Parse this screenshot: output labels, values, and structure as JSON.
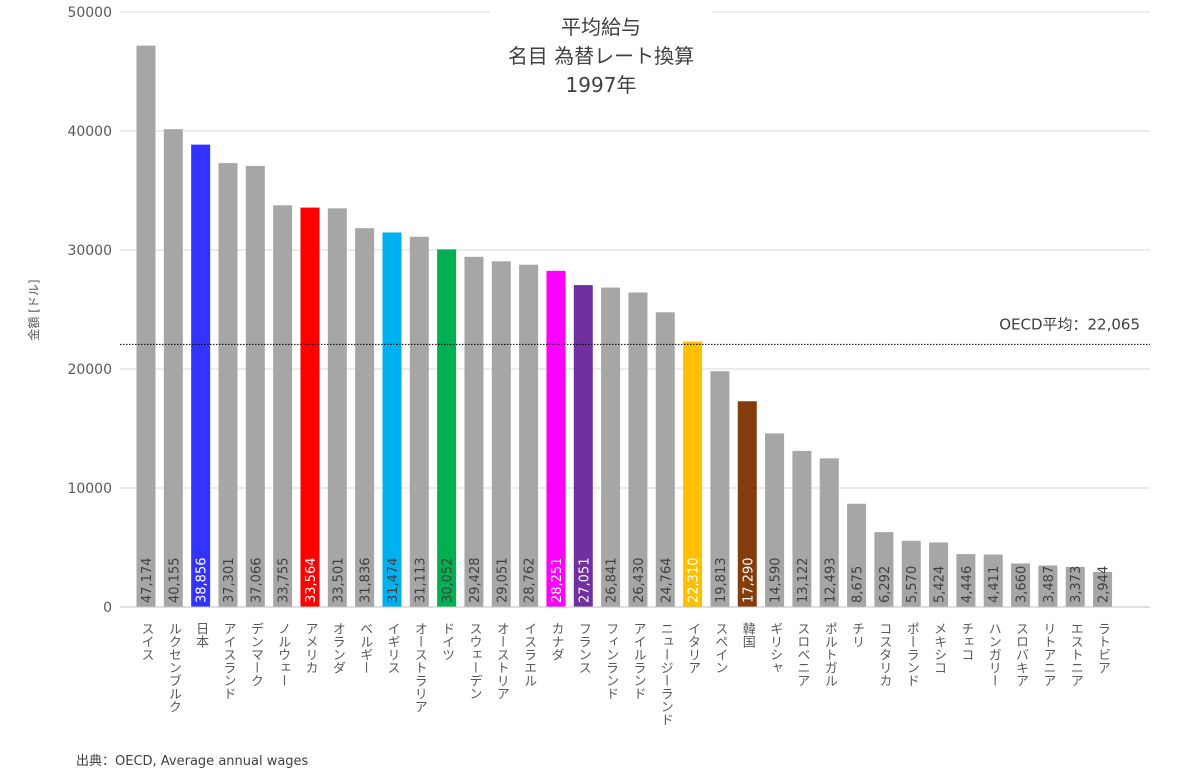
{
  "chart_data": {
    "type": "bar",
    "title": [
      "平均給与",
      "名目 為替レート換算",
      "1997年"
    ],
    "ylabel": "金額 [ドル]",
    "xlabel": "",
    "ylim": [
      0,
      50000
    ],
    "yticks": [
      0,
      10000,
      20000,
      30000,
      40000,
      50000
    ],
    "grid": true,
    "categories": [
      "スイス",
      "ルクセンブルク",
      "日本",
      "アイスランド",
      "デンマーク",
      "ノルウェー",
      "アメリカ",
      "オランダ",
      "ベルギー",
      "イギリス",
      "オーストラリア",
      "ドイツ",
      "スウェーデン",
      "オーストリア",
      "イスラエル",
      "カナダ",
      "フランス",
      "フィンランド",
      "アイルランド",
      "ニュージーランド",
      "イタリア",
      "スペイン",
      "韓国",
      "ギリシャ",
      "スロベニア",
      "ポルトガル",
      "チリ",
      "コスタリカ",
      "ポーランド",
      "メキシコ",
      "チェコ",
      "ハンガリー",
      "スロバキア",
      "リトアニア",
      "エストニア",
      "ラトビア"
    ],
    "values": [
      47174,
      40155,
      38856,
      37301,
      37066,
      33755,
      33564,
      33501,
      31836,
      31474,
      31113,
      30052,
      29428,
      29051,
      28762,
      28251,
      27051,
      26841,
      26430,
      24764,
      22310,
      19813,
      17290,
      14590,
      13122,
      12493,
      8675,
      6292,
      5570,
      5424,
      4446,
      4411,
      3660,
      3487,
      3373,
      2944
    ],
    "value_labels": [
      "47,174",
      "40,155",
      "38,856",
      "37,301",
      "37,066",
      "33,755",
      "33,564",
      "33,501",
      "31,836",
      "31,474",
      "31,113",
      "30,052",
      "29,428",
      "29,051",
      "28,762",
      "28,251",
      "27,051",
      "26,841",
      "26,430",
      "24,764",
      "22,310",
      "19,813",
      "17,290",
      "14,590",
      "13,122",
      "12,493",
      "8,675",
      "6,292",
      "5,570",
      "5,424",
      "4,446",
      "4,411",
      "3,660",
      "3,487",
      "3,373",
      "2,944"
    ],
    "default_color": "#a6a6a6",
    "highlight_colors": {
      "日本": "#3333ff",
      "アメリカ": "#ff0000",
      "イギリス": "#00b0f0",
      "ドイツ": "#00b050",
      "カナダ": "#ff00ff",
      "フランス": "#7030a0",
      "イタリア": "#ffc000",
      "韓国": "#843c0c"
    },
    "reference_line": {
      "value": 22065,
      "label": "OECD平均：22,065"
    }
  },
  "source": "出典：OECD, Average annual wages"
}
